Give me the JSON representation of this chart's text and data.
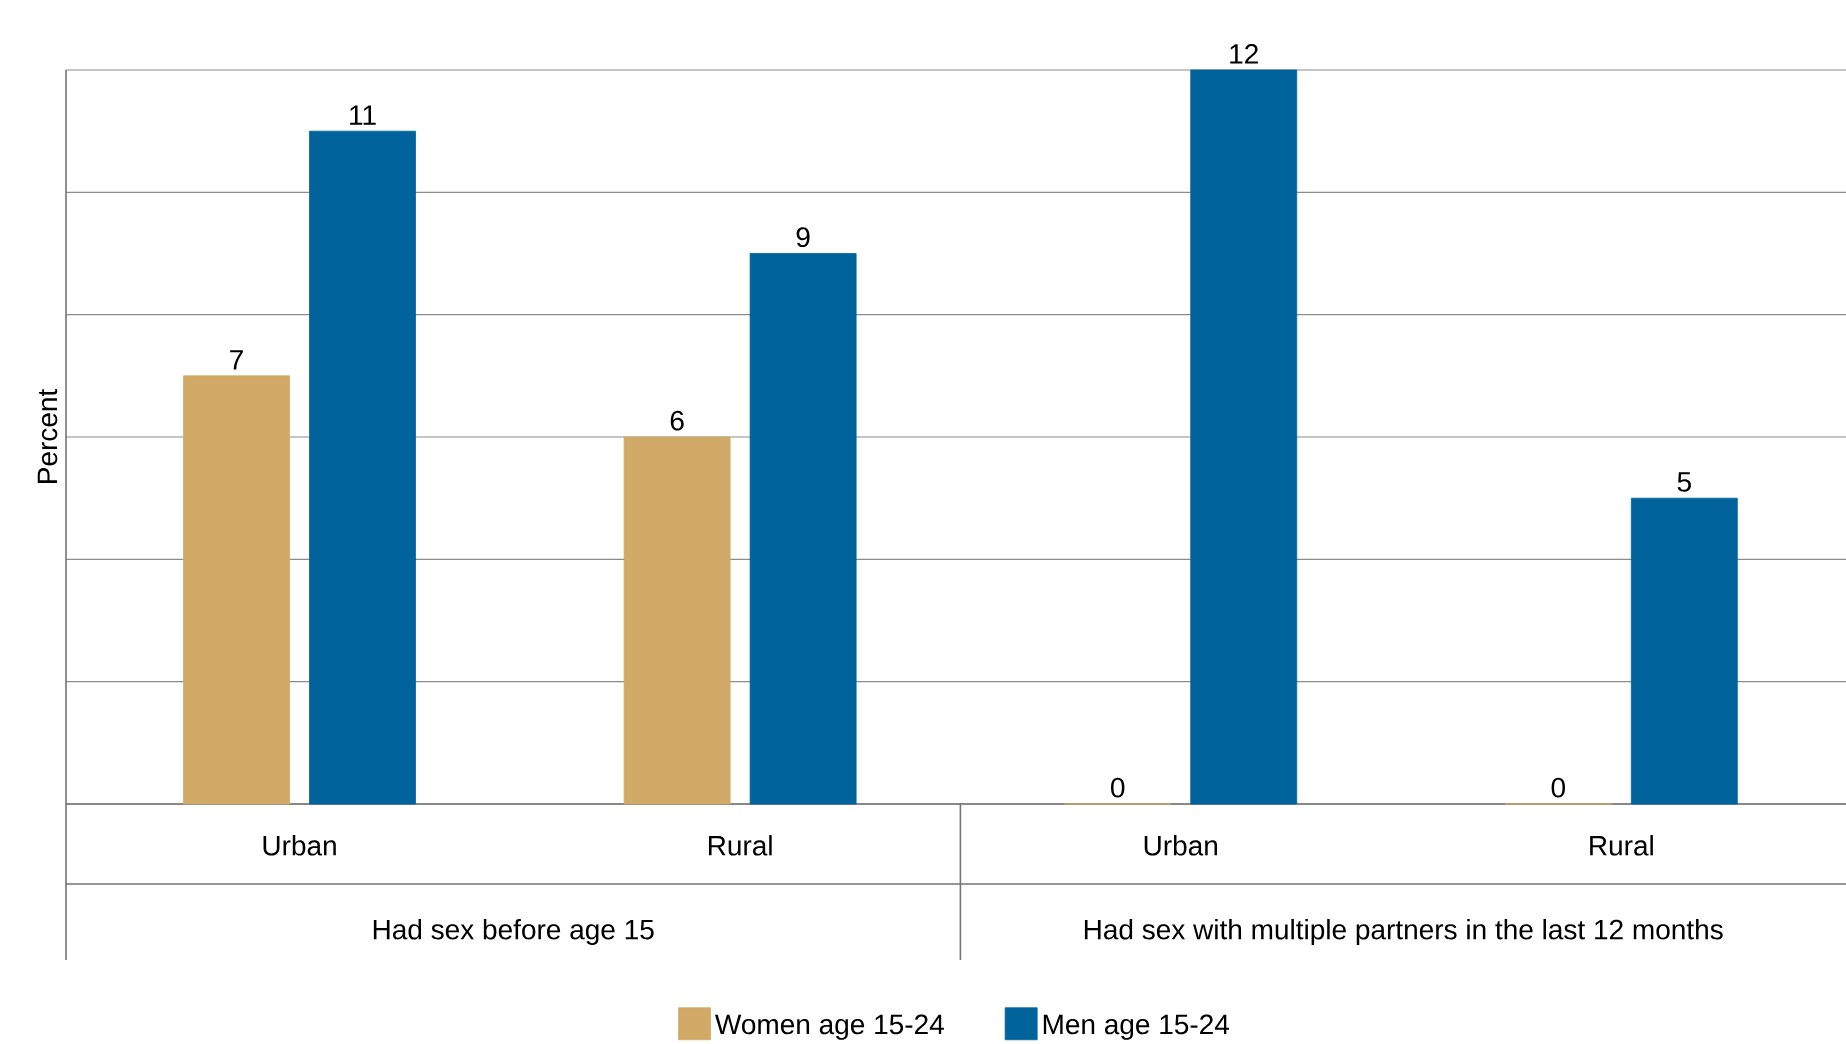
{
  "chart_data": {
    "type": "bar",
    "ylabel": "Percent",
    "categories": [
      "Urban",
      "Rural",
      "Urban",
      "Rural"
    ],
    "series": [
      {
        "name": "Women age 15-24",
        "color": "#d0aa66",
        "values": [
          7,
          6,
          0,
          0
        ]
      },
      {
        "name": "Men age 15-24",
        "color": "#00639c",
        "values": [
          11,
          9,
          12,
          5
        ]
      }
    ],
    "annotations": [
      "Had sex before age 15",
      "Had sex with multiple partners in the last 12 months"
    ],
    "ylim": [
      0,
      12
    ],
    "yticks": [
      {
        "value": 0,
        "label": null
      },
      {
        "value": 2,
        "label": null
      },
      {
        "value": 4,
        "label": null
      },
      {
        "value": 6,
        "label": null
      },
      {
        "value": 8,
        "label": null
      },
      {
        "value": 10,
        "label": null
      },
      {
        "value": 12,
        "label": null
      }
    ],
    "grid": "y",
    "tick_labels": "x",
    "data_labels": true,
    "legend": "bottom"
  }
}
